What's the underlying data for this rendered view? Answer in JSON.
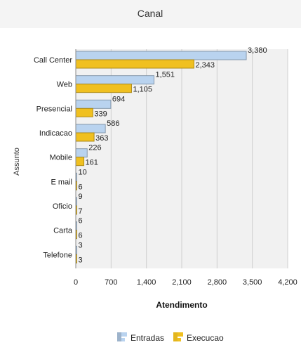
{
  "chart_data": {
    "type": "bar",
    "orientation": "horizontal",
    "title": "Canal",
    "xlabel": "Atendimento",
    "ylabel": "Assunto",
    "xlim": [
      0,
      4200
    ],
    "xticks": [
      0,
      700,
      1400,
      2100,
      2800,
      3500,
      4200
    ],
    "xtick_labels": [
      "0",
      "700",
      "1,400",
      "2,100",
      "2,800",
      "3,500",
      "4,200"
    ],
    "categories": [
      "Call Center",
      "Web",
      "Presencial",
      "Indicacao",
      "Mobile",
      "E mail",
      "Oficio",
      "Carta",
      "Telefone"
    ],
    "series": [
      {
        "name": "Entradas",
        "color": "#b9d3ef",
        "values": [
          3380,
          1551,
          694,
          586,
          226,
          10,
          9,
          6,
          3
        ],
        "labels": [
          "3,380",
          "1,551",
          "694",
          "586",
          "226",
          "10",
          "9",
          "6",
          "3"
        ]
      },
      {
        "name": "Execucao",
        "color": "#f0c020",
        "values": [
          2343,
          1105,
          339,
          363,
          161,
          6,
          7,
          6,
          3
        ],
        "labels": [
          "2,343",
          "1,105",
          "339",
          "363",
          "161",
          "6",
          "7",
          "6",
          "3"
        ]
      }
    ],
    "grid": true,
    "legend_position": "bottom"
  }
}
